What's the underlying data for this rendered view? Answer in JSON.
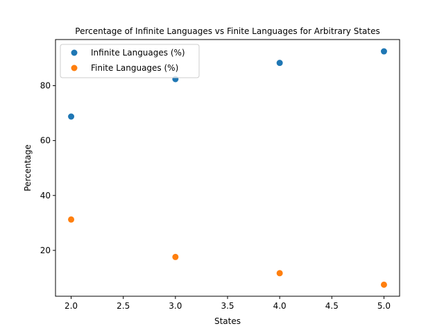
{
  "chart_data": {
    "type": "scatter",
    "title": "Percentage of Infinite Languages vs Finite Languages for Arbitrary States",
    "xlabel": "States",
    "ylabel": "Percentage",
    "xlim": [
      1.85,
      5.15
    ],
    "ylim": [
      3.3,
      96.8
    ],
    "xticks": [
      2.0,
      2.5,
      3.0,
      3.5,
      4.0,
      4.5,
      5.0
    ],
    "xtick_labels": [
      "2.0",
      "2.5",
      "3.0",
      "3.5",
      "4.0",
      "4.5",
      "5.0"
    ],
    "yticks": [
      20,
      40,
      60,
      80
    ],
    "ytick_labels": [
      "20",
      "40",
      "60",
      "80"
    ],
    "grid": false,
    "legend_position": "top-left",
    "series": [
      {
        "name": "Infinite Languages (%)",
        "color": "#1f77b4",
        "x": [
          2,
          3,
          4,
          5
        ],
        "y": [
          68.75,
          82.4,
          88.3,
          92.5
        ]
      },
      {
        "name": "Finite Languages (%)",
        "color": "#ff7f0e",
        "x": [
          2,
          3,
          4,
          5
        ],
        "y": [
          31.25,
          17.6,
          11.7,
          7.5
        ]
      }
    ]
  }
}
